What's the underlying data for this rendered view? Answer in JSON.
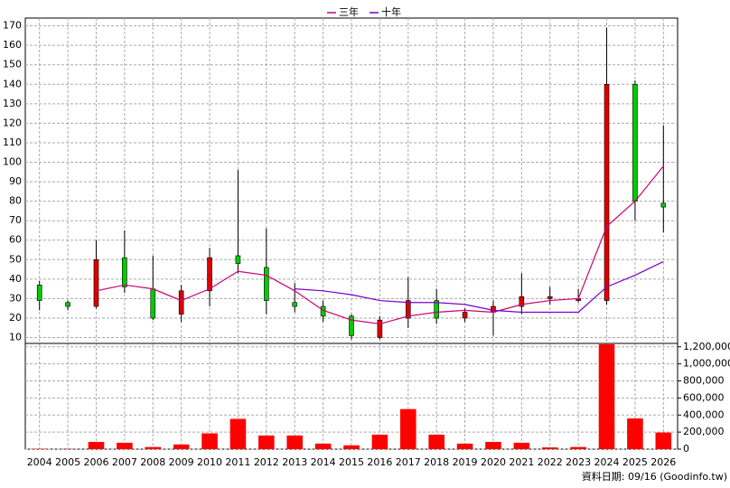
{
  "chart_data": {
    "type": "candlestick",
    "categories": [
      "2004",
      "2005",
      "2006",
      "2007",
      "2008",
      "2009",
      "2010",
      "2011",
      "2012",
      "2013",
      "2014",
      "2015",
      "2016",
      "2017",
      "2018",
      "2019",
      "2020",
      "2021",
      "2022",
      "2023",
      "2024",
      "2025",
      "2026"
    ],
    "open": [
      37,
      28,
      26,
      51,
      35,
      22,
      34,
      52,
      46,
      28,
      26,
      21,
      10,
      20,
      29,
      20,
      23,
      26,
      30,
      29,
      29,
      140,
      79
    ],
    "high": [
      39,
      29,
      60,
      65,
      52,
      37,
      56,
      96,
      66,
      38,
      29,
      22,
      21,
      41,
      35,
      25,
      29,
      43,
      36,
      35,
      169,
      142,
      119
    ],
    "low": [
      24,
      24,
      25,
      33,
      19,
      18,
      26,
      43,
      22,
      23,
      18,
      9,
      9,
      15,
      17,
      18,
      11,
      22,
      27,
      28,
      27,
      70,
      64
    ],
    "close": [
      29,
      26,
      50,
      36,
      20,
      34,
      51,
      48,
      29,
      26,
      21,
      11,
      19,
      29,
      20,
      23,
      26,
      31,
      31,
      30,
      140,
      80,
      77
    ],
    "up_color": "#dd0000",
    "down_color": "#00cc00",
    "ylim": [
      7,
      174
    ],
    "yticks": [
      10,
      20,
      30,
      40,
      50,
      60,
      70,
      80,
      90,
      100,
      110,
      120,
      130,
      140,
      150,
      160,
      170
    ],
    "lines": [
      {
        "name": "三年",
        "color": "#cc0077",
        "values": [
          null,
          null,
          34,
          37,
          35,
          29,
          35,
          44,
          42,
          34,
          24,
          19,
          17,
          21,
          23,
          24,
          23,
          27,
          29,
          30,
          67,
          80,
          98
        ]
      },
      {
        "name": "十年",
        "color": "#7700cc",
        "values": [
          null,
          null,
          null,
          null,
          null,
          null,
          null,
          null,
          null,
          35,
          34,
          32,
          29,
          28,
          28,
          27,
          24,
          23,
          23,
          23,
          36,
          42,
          49
        ]
      }
    ],
    "volume": {
      "color": "#ff0000",
      "values": [
        5000,
        3000,
        85000,
        75000,
        25000,
        55000,
        185000,
        355000,
        160000,
        160000,
        65000,
        45000,
        170000,
        470000,
        170000,
        65000,
        85000,
        75000,
        20000,
        25000,
        1230000,
        360000,
        195000
      ],
      "ylim": [
        0,
        1240000
      ],
      "yticks": [
        0,
        {
          "value": 200000,
          "label": "200,000"
        },
        {
          "value": 400000,
          "label": "400,000"
        },
        {
          "value": 600000,
          "label": "600,000"
        },
        {
          "value": 800000,
          "label": "800,000"
        },
        {
          "value": 1000000,
          "label": "1,000,000"
        },
        {
          "value": 1200000,
          "label": "1,200,000"
        }
      ]
    },
    "grid": true,
    "legend": "top",
    "source": "資料日期: 09/16 (Goodinfo.tw)"
  }
}
